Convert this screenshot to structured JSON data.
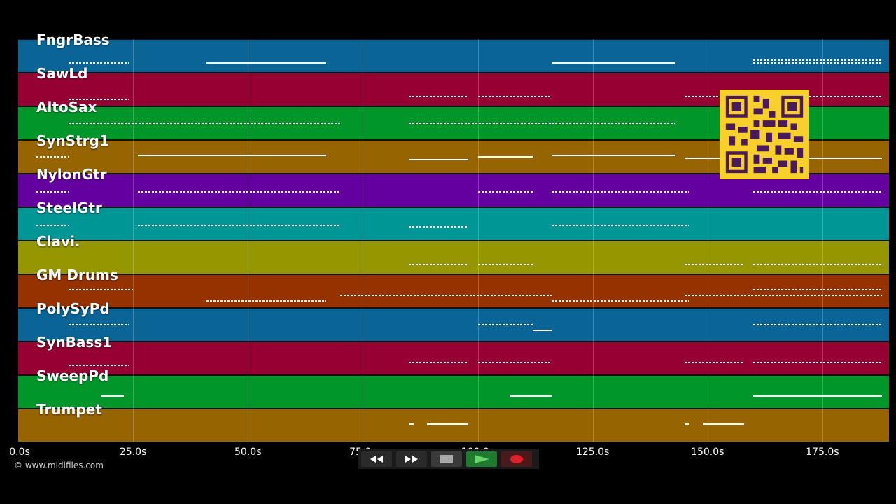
{
  "tracks": [
    {
      "name": "FngrBass",
      "color": "#0a6496"
    },
    {
      "name": "SawLd",
      "color": "#960032"
    },
    {
      "name": "AltoSax",
      "color": "#00962a"
    },
    {
      "name": "SynStrg1",
      "color": "#966400"
    },
    {
      "name": "NylonGtr",
      "color": "#6400a0"
    },
    {
      "name": "SteelGtr",
      "color": "#009696"
    },
    {
      "name": "Clavi.",
      "color": "#969600"
    },
    {
      "name": "GM Drums",
      "color": "#963200"
    },
    {
      "name": "PolySyPd",
      "color": "#0a6496"
    },
    {
      "name": "SynBass1",
      "color": "#960032"
    },
    {
      "name": "SweepPd",
      "color": "#00962a"
    },
    {
      "name": "Trumpet",
      "color": "#966400"
    }
  ],
  "time_axis": {
    "labels": [
      "0.0s",
      "25.0s",
      "50.0s",
      "75.0s",
      "100.0s",
      "125.0s",
      "150.0s",
      "175.0s"
    ]
  },
  "credit": "© www.midifiles.com",
  "transport": [
    {
      "name": "rewind-button",
      "icon": "rewind-icon"
    },
    {
      "name": "fast-forward-button",
      "icon": "fast-forward-icon"
    },
    {
      "name": "stop-button",
      "icon": "stop-icon"
    },
    {
      "name": "play-button",
      "icon": "play-icon"
    },
    {
      "name": "record-button",
      "icon": "record-icon"
    }
  ],
  "qr_code": {
    "icon": "qr-code-icon",
    "color": "#f7d02c"
  }
}
